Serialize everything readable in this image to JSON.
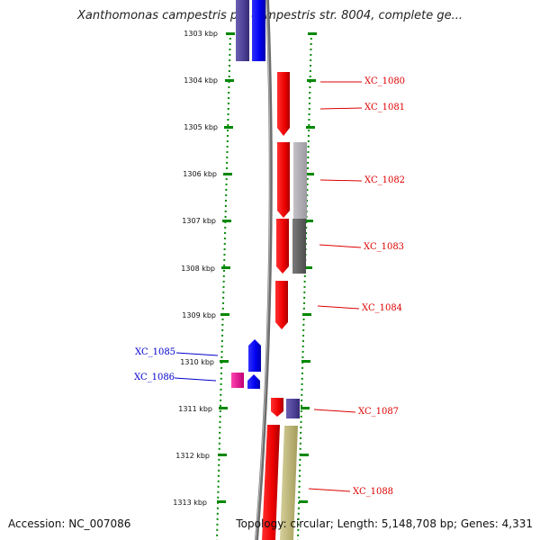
{
  "header": {
    "title": "Xanthomonas campestris pv. campestris str. 8004, complete ge..."
  },
  "footer": {
    "accession": "Accession: NC_007086",
    "info": "Topology: circular; Length: 5,148,708 bp; Genes: 4,331"
  },
  "colors": {
    "forward_label": "#dd0000",
    "reverse_label": "#0000cc",
    "ruler": "#008800",
    "genome_line": "#8a8a8a"
  },
  "ruler_labels": [
    "1303 kbp",
    "1304 kbp",
    "1305 kbp",
    "1306 kbp",
    "1307 kbp",
    "1308 kbp",
    "1309 kbp",
    "1310 kbp",
    "1311 kbp",
    "1312 kbp",
    "1313 kbp"
  ],
  "gene_labels": [
    {
      "name": "XC_1080",
      "strand": "forward"
    },
    {
      "name": "XC_1081",
      "strand": "forward"
    },
    {
      "name": "XC_1082",
      "strand": "forward"
    },
    {
      "name": "XC_1083",
      "strand": "forward"
    },
    {
      "name": "XC_1084",
      "strand": "forward"
    },
    {
      "name": "XC_1085",
      "strand": "reverse"
    },
    {
      "name": "XC_1086",
      "strand": "reverse"
    },
    {
      "name": "XC_1087",
      "strand": "forward"
    },
    {
      "name": "XC_1088",
      "strand": "forward"
    }
  ]
}
